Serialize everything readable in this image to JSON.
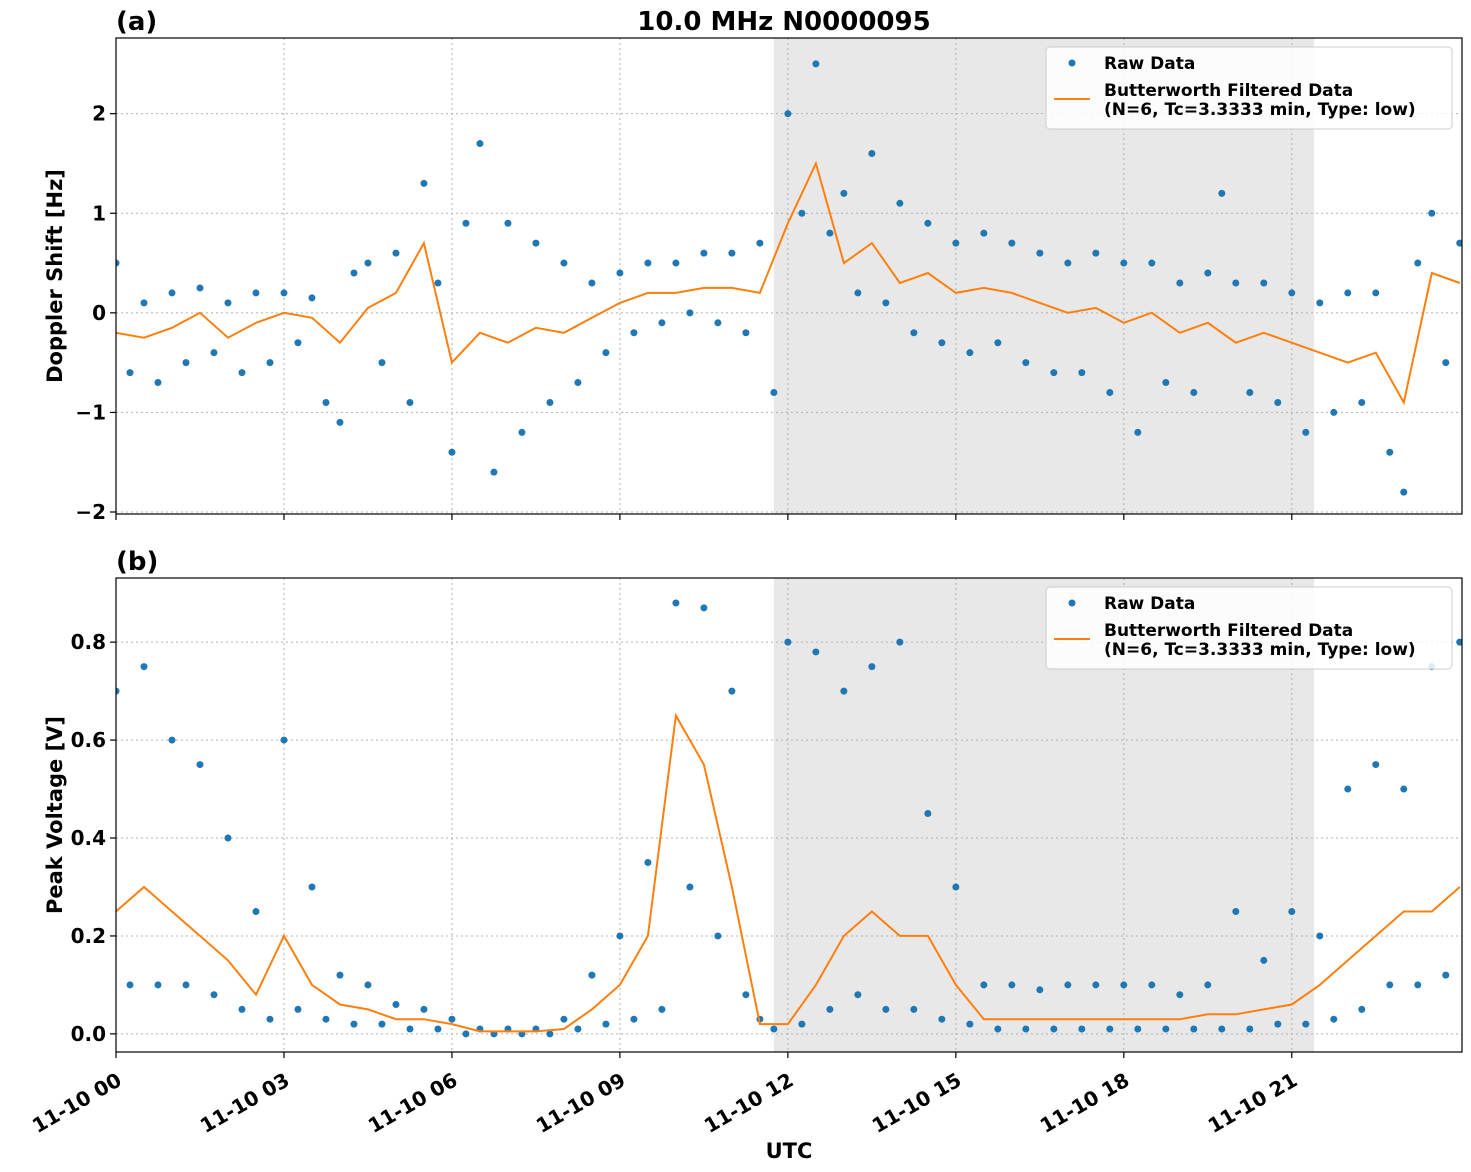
{
  "title": "10.0 MHz N0000095",
  "chart_data": [
    {
      "type": "scatter_line",
      "panel_label": "(a)",
      "ylabel": "Doppler Shift [Hz]",
      "xlim": [
        0,
        24.04
      ],
      "ylim": [
        -2.02,
        2.76
      ],
      "xticks": [
        0,
        3,
        6,
        9,
        12,
        15,
        18,
        21
      ],
      "yticks": [
        {
          "value": -2,
          "label": "−2"
        },
        {
          "value": -1,
          "label": "−1"
        },
        0,
        1,
        2
      ],
      "grid": true,
      "legend": "upper right",
      "shaded_span": [
        11.75,
        21.4
      ],
      "shade_color": "#e8e8e8",
      "series": [
        {
          "name": "Raw Data",
          "kind": "scatter",
          "color": "#1f77b4",
          "x": [
            0,
            0.25,
            0.5,
            0.75,
            1,
            1.25,
            1.5,
            1.75,
            2,
            2.25,
            2.5,
            2.75,
            3,
            3.25,
            3.5,
            3.75,
            4,
            4.25,
            4.5,
            4.75,
            5,
            5.25,
            5.5,
            5.75,
            6,
            6.25,
            6.5,
            6.75,
            7,
            7.25,
            7.5,
            7.75,
            8,
            8.25,
            8.5,
            8.75,
            9,
            9.25,
            9.5,
            9.75,
            10,
            10.25,
            10.5,
            10.75,
            11,
            11.25,
            11.5,
            11.75,
            12,
            12.25,
            12.5,
            12.75,
            13,
            13.25,
            13.5,
            13.75,
            14,
            14.25,
            14.5,
            14.75,
            15,
            15.25,
            15.5,
            15.75,
            16,
            16.25,
            16.5,
            16.75,
            17,
            17.25,
            17.5,
            17.75,
            18,
            18.25,
            18.5,
            18.75,
            19,
            19.25,
            19.5,
            19.75,
            20,
            20.25,
            20.5,
            20.75,
            21,
            21.25,
            21.5,
            21.75,
            22,
            22.25,
            22.5,
            22.75,
            23,
            23.25,
            23.5,
            23.75,
            24
          ],
          "values": [
            0.5,
            -0.6,
            0.1,
            -0.7,
            0.2,
            -0.5,
            0.25,
            -0.4,
            0.1,
            -0.6,
            0.2,
            -0.5,
            0.2,
            -0.3,
            0.15,
            -0.9,
            -1.1,
            0.4,
            0.5,
            -0.5,
            0.6,
            -0.9,
            1.3,
            0.3,
            -1.4,
            0.9,
            1.7,
            -1.6,
            0.9,
            -1.2,
            0.7,
            -0.9,
            0.5,
            -0.7,
            0.3,
            -0.4,
            0.4,
            -0.2,
            0.5,
            -0.1,
            0.5,
            0.0,
            0.6,
            -0.1,
            0.6,
            -0.2,
            0.7,
            -0.8,
            2.0,
            1.0,
            2.5,
            0.8,
            1.2,
            0.2,
            1.6,
            0.1,
            1.1,
            -0.2,
            0.9,
            -0.3,
            0.7,
            -0.4,
            0.8,
            -0.3,
            0.7,
            -0.5,
            0.6,
            -0.6,
            0.5,
            -0.6,
            0.6,
            -0.8,
            0.5,
            -1.2,
            0.5,
            -0.7,
            0.3,
            -0.8,
            0.4,
            1.2,
            0.3,
            -0.8,
            0.3,
            -0.9,
            0.2,
            -1.2,
            0.1,
            -1.0,
            0.2,
            -0.9,
            0.2,
            -1.4,
            -1.8,
            0.5,
            1.0,
            -0.5,
            0.7
          ]
        },
        {
          "name": "Butterworth Filtered Data\n(N=6, Tc=3.3333 min, Type: low)",
          "kind": "line",
          "color": "#ff7f0e",
          "x": [
            0,
            0.5,
            1,
            1.5,
            2,
            2.5,
            3,
            3.5,
            4,
            4.5,
            5,
            5.5,
            6,
            6.5,
            7,
            7.5,
            8,
            8.5,
            9,
            9.5,
            10,
            10.5,
            11,
            11.5,
            12,
            12.5,
            13,
            13.5,
            14,
            14.5,
            15,
            15.5,
            16,
            16.5,
            17,
            17.5,
            18,
            18.5,
            19,
            19.5,
            20,
            20.5,
            21,
            21.5,
            22,
            22.5,
            23,
            23.5,
            24
          ],
          "values": [
            -0.2,
            -0.25,
            -0.15,
            0.0,
            -0.25,
            -0.1,
            0.0,
            -0.05,
            -0.3,
            0.05,
            0.2,
            0.7,
            -0.5,
            -0.2,
            -0.3,
            -0.15,
            -0.2,
            -0.05,
            0.1,
            0.2,
            0.2,
            0.25,
            0.25,
            0.2,
            0.9,
            1.5,
            0.5,
            0.7,
            0.3,
            0.4,
            0.2,
            0.25,
            0.2,
            0.1,
            0.0,
            0.05,
            -0.1,
            0.0,
            -0.2,
            -0.1,
            -0.3,
            -0.2,
            -0.3,
            -0.4,
            -0.5,
            -0.4,
            -0.9,
            0.4,
            0.3
          ]
        }
      ]
    },
    {
      "type": "scatter_line",
      "panel_label": "(b)",
      "ylabel": "Peak Voltage [V]",
      "xlabel": "UTC",
      "xlim": [
        0,
        24.04
      ],
      "ylim": [
        -0.037,
        0.931
      ],
      "xticks": [
        {
          "value": 0,
          "label": "11-10 00"
        },
        {
          "value": 3,
          "label": "11-10 03"
        },
        {
          "value": 6,
          "label": "11-10 06"
        },
        {
          "value": 9,
          "label": "11-10 09"
        },
        {
          "value": 12,
          "label": "11-10 12"
        },
        {
          "value": 15,
          "label": "11-10 15"
        },
        {
          "value": 18,
          "label": "11-10 18"
        },
        {
          "value": 21,
          "label": "11-10 21"
        }
      ],
      "yticks": [
        {
          "value": 0,
          "label": "0.0"
        },
        0.2,
        0.4,
        0.6,
        0.8
      ],
      "grid": true,
      "legend": "upper right",
      "shaded_span": [
        11.75,
        21.4
      ],
      "shade_color": "#e8e8e8",
      "series": [
        {
          "name": "Raw Data",
          "kind": "scatter",
          "color": "#1f77b4",
          "x": [
            0,
            0.25,
            0.5,
            0.75,
            1,
            1.25,
            1.5,
            1.75,
            2,
            2.25,
            2.5,
            2.75,
            3,
            3.25,
            3.5,
            3.75,
            4,
            4.25,
            4.5,
            4.75,
            5,
            5.25,
            5.5,
            5.75,
            6,
            6.25,
            6.5,
            6.75,
            7,
            7.25,
            7.5,
            7.75,
            8,
            8.25,
            8.5,
            8.75,
            9,
            9.25,
            9.5,
            9.75,
            10,
            10.25,
            10.5,
            10.75,
            11,
            11.25,
            11.5,
            11.75,
            12,
            12.25,
            12.5,
            12.75,
            13,
            13.25,
            13.5,
            13.75,
            14,
            14.25,
            14.5,
            14.75,
            15,
            15.25,
            15.5,
            15.75,
            16,
            16.25,
            16.5,
            16.75,
            17,
            17.25,
            17.5,
            17.75,
            18,
            18.25,
            18.5,
            18.75,
            19,
            19.25,
            19.5,
            19.75,
            20,
            20.25,
            20.5,
            20.75,
            21,
            21.25,
            21.5,
            21.75,
            22,
            22.25,
            22.5,
            22.75,
            23,
            23.25,
            23.5,
            23.75,
            24
          ],
          "values": [
            0.7,
            0.1,
            0.75,
            0.1,
            0.6,
            0.1,
            0.55,
            0.08,
            0.4,
            0.05,
            0.25,
            0.03,
            0.6,
            0.05,
            0.3,
            0.03,
            0.12,
            0.02,
            0.1,
            0.02,
            0.06,
            0.01,
            0.05,
            0.01,
            0.03,
            0.0,
            0.01,
            0.0,
            0.01,
            0.0,
            0.01,
            0.0,
            0.03,
            0.01,
            0.12,
            0.02,
            0.2,
            0.03,
            0.35,
            0.05,
            0.88,
            0.3,
            0.87,
            0.2,
            0.7,
            0.08,
            0.03,
            0.01,
            0.8,
            0.02,
            0.78,
            0.05,
            0.7,
            0.08,
            0.75,
            0.05,
            0.8,
            0.05,
            0.45,
            0.03,
            0.3,
            0.02,
            0.1,
            0.01,
            0.1,
            0.01,
            0.09,
            0.01,
            0.1,
            0.01,
            0.1,
            0.01,
            0.1,
            0.01,
            0.1,
            0.01,
            0.08,
            0.01,
            0.1,
            0.01,
            0.25,
            0.01,
            0.15,
            0.02,
            0.25,
            0.02,
            0.2,
            0.03,
            0.5,
            0.05,
            0.55,
            0.1,
            0.5,
            0.1,
            0.75,
            0.12,
            0.8
          ]
        },
        {
          "name": "Butterworth Filtered Data\n(N=6, Tc=3.3333 min, Type: low)",
          "kind": "line",
          "color": "#ff7f0e",
          "x": [
            0,
            0.5,
            1,
            1.5,
            2,
            2.5,
            3,
            3.5,
            4,
            4.5,
            5,
            5.5,
            6,
            6.5,
            7,
            7.5,
            8,
            8.5,
            9,
            9.5,
            10,
            10.5,
            11,
            11.5,
            12,
            12.5,
            13,
            13.5,
            14,
            14.5,
            15,
            15.5,
            16,
            16.5,
            17,
            17.5,
            18,
            18.5,
            19,
            19.5,
            20,
            20.5,
            21,
            21.5,
            22,
            22.5,
            23,
            23.5,
            24
          ],
          "values": [
            0.25,
            0.3,
            0.25,
            0.2,
            0.15,
            0.08,
            0.2,
            0.1,
            0.06,
            0.05,
            0.03,
            0.03,
            0.02,
            0.005,
            0.005,
            0.005,
            0.01,
            0.05,
            0.1,
            0.2,
            0.65,
            0.55,
            0.3,
            0.02,
            0.02,
            0.1,
            0.2,
            0.25,
            0.2,
            0.2,
            0.1,
            0.03,
            0.03,
            0.03,
            0.03,
            0.03,
            0.03,
            0.03,
            0.03,
            0.04,
            0.04,
            0.05,
            0.06,
            0.1,
            0.15,
            0.2,
            0.25,
            0.25,
            0.3
          ]
        }
      ]
    }
  ]
}
